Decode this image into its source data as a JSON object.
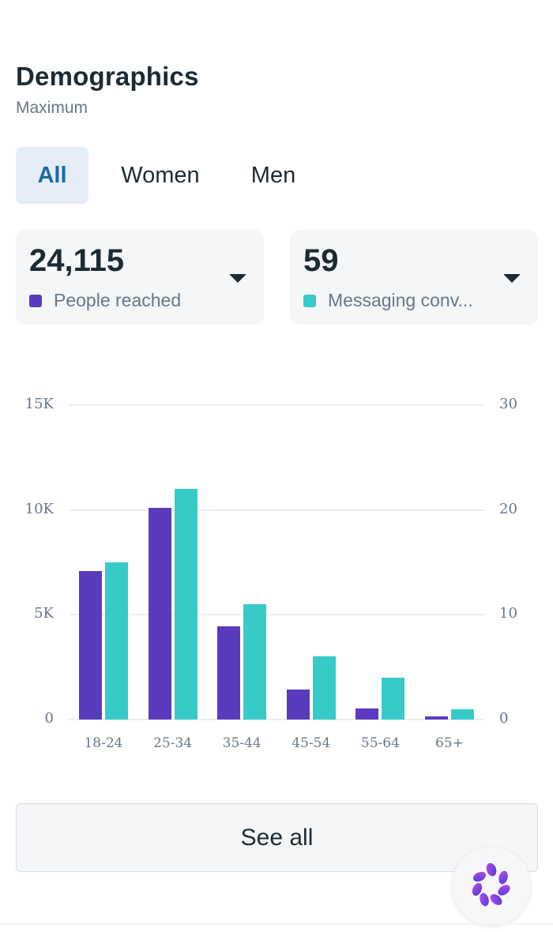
{
  "header": {
    "title": "Demographics",
    "subtitle": "Maximum"
  },
  "tabs": [
    {
      "label": "All",
      "active": true
    },
    {
      "label": "Women",
      "active": false
    },
    {
      "label": "Men",
      "active": false
    }
  ],
  "metrics": [
    {
      "value": "24,115",
      "label": "People reached",
      "color": "#5b3bbd"
    },
    {
      "value": "59",
      "label": "Messaging conv...",
      "color": "#36cbc9"
    }
  ],
  "see_all_label": "See all",
  "fab": {
    "icon": "meta-ai-sparkle-icon"
  },
  "colors": {
    "primary_series": "#5b3bbd",
    "secondary_series": "#36cbc9",
    "active_tab_bg": "#e5eef7",
    "active_tab_text": "#1b6aa6"
  },
  "chart_data": {
    "type": "bar",
    "title": "",
    "categories": [
      "18-24",
      "25-34",
      "35-44",
      "45-54",
      "55-64",
      "65+"
    ],
    "series": [
      {
        "name": "People reached",
        "axis": "left",
        "color": "#5b3bbd",
        "values": [
          7100,
          10100,
          4450,
          1430,
          530,
          160
        ]
      },
      {
        "name": "Messaging conversations",
        "axis": "right",
        "color": "#36cbc9",
        "values": [
          15,
          22,
          11,
          6,
          4,
          1
        ]
      }
    ],
    "y_left": {
      "ticks": [
        "0",
        "5K",
        "10K",
        "15K"
      ],
      "range": [
        0,
        15000
      ]
    },
    "y_right": {
      "ticks": [
        "0",
        "10",
        "20",
        "30"
      ],
      "range": [
        0,
        30
      ]
    },
    "xlabel": "",
    "ylabel": "",
    "grid": true,
    "legend_position": "top (metric cards)"
  }
}
